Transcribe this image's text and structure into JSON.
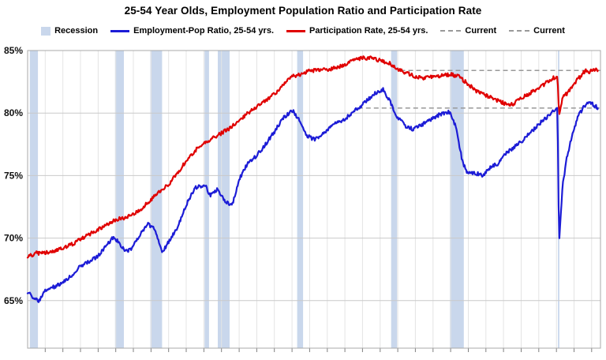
{
  "title": "25-54 Year Olds, Employment Population Ratio and Participation Rate",
  "legend": [
    {
      "name": "recession",
      "label": "Recession",
      "type": "box",
      "color": "#c9d7ec"
    },
    {
      "name": "employment-pop-ratio",
      "label": "Employment-Pop Ratio, 25-54 yrs.",
      "type": "line",
      "color": "#1c1cd6"
    },
    {
      "name": "participation-rate",
      "label": "Participation Rate, 25-54 yrs.",
      "type": "line",
      "color": "#e00000"
    },
    {
      "name": "current-1",
      "label": "Current",
      "type": "dash",
      "color": "#999999"
    },
    {
      "name": "current-2",
      "label": "Current",
      "type": "dash",
      "color": "#999999"
    }
  ],
  "chart_data": {
    "type": "line",
    "title": "25-54 Year Olds, Employment Population Ratio and Participation Rate",
    "xlabel": "",
    "ylabel": "",
    "x_range": [
      1960,
      2025
    ],
    "y_range": [
      61.2,
      85
    ],
    "x_grid_step": 2,
    "grid": {
      "horizontal": true,
      "vertical": true
    },
    "legend_position": "top",
    "y_ticks": [
      {
        "value": 85,
        "label": "85%"
      },
      {
        "value": 80,
        "label": "80%"
      },
      {
        "value": 75,
        "label": "75%"
      },
      {
        "value": 70,
        "label": "70%"
      },
      {
        "value": 65,
        "label": "65%"
      }
    ],
    "colors": {
      "recession_band": "#c9d7ec",
      "grid_vertical": "#e4e4e4",
      "grid_horizontal": "#c9c9c9",
      "plot_border": "#a8a8a8",
      "current_dash": "#999999"
    },
    "recession_bands": [
      [
        1960.25,
        1961.17
      ],
      [
        1969.92,
        1970.92
      ],
      [
        1973.92,
        1975.25
      ],
      [
        1980.08,
        1980.58
      ],
      [
        1981.58,
        1982.92
      ],
      [
        1990.58,
        1991.25
      ],
      [
        2001.25,
        2001.92
      ],
      [
        2007.92,
        2009.5
      ],
      [
        2020.17,
        2020.33
      ]
    ],
    "current_lines": [
      {
        "label": "Current",
        "series": "Participation Rate, 25-54 yrs.",
        "value": 83.4,
        "x_start": 2002.3
      },
      {
        "label": "Current",
        "series": "Employment-Pop Ratio, 25-54 yrs.",
        "value": 80.4,
        "x_start": 1997.5
      }
    ],
    "series": [
      {
        "name": "Employment-Pop Ratio, 25-54 yrs.",
        "color": "#1c1cd6",
        "points": [
          [
            1960.0,
            65.7
          ],
          [
            1960.6,
            65.3
          ],
          [
            1961.3,
            65.0
          ],
          [
            1962.0,
            65.8
          ],
          [
            1963.0,
            66.1
          ],
          [
            1964.0,
            66.5
          ],
          [
            1965.0,
            67.0
          ],
          [
            1966.0,
            67.8
          ],
          [
            1967.0,
            68.1
          ],
          [
            1968.0,
            68.6
          ],
          [
            1969.0,
            69.5
          ],
          [
            1969.8,
            70.1
          ],
          [
            1970.4,
            69.6
          ],
          [
            1971.1,
            68.9
          ],
          [
            1971.8,
            69.2
          ],
          [
            1972.5,
            70.0
          ],
          [
            1973.6,
            71.2
          ],
          [
            1974.4,
            70.7
          ],
          [
            1975.3,
            68.9
          ],
          [
            1976.0,
            69.7
          ],
          [
            1977.0,
            70.8
          ],
          [
            1978.0,
            72.7
          ],
          [
            1979.0,
            74.0
          ],
          [
            1980.1,
            74.3
          ],
          [
            1980.7,
            73.4
          ],
          [
            1981.5,
            73.9
          ],
          [
            1982.3,
            73.0
          ],
          [
            1983.2,
            72.6
          ],
          [
            1984.0,
            74.7
          ],
          [
            1985.0,
            76.0
          ],
          [
            1986.0,
            76.6
          ],
          [
            1987.0,
            77.5
          ],
          [
            1988.0,
            78.5
          ],
          [
            1989.0,
            79.6
          ],
          [
            1990.1,
            80.2
          ],
          [
            1990.9,
            79.3
          ],
          [
            1991.6,
            78.2
          ],
          [
            1992.5,
            77.9
          ],
          [
            1993.5,
            78.3
          ],
          [
            1994.5,
            79.0
          ],
          [
            1995.5,
            79.3
          ],
          [
            1996.5,
            79.8
          ],
          [
            1997.5,
            80.4
          ],
          [
            1998.5,
            81.0
          ],
          [
            1999.5,
            81.6
          ],
          [
            2000.3,
            81.9
          ],
          [
            2001.0,
            81.1
          ],
          [
            2002.0,
            79.6
          ],
          [
            2003.0,
            78.9
          ],
          [
            2003.8,
            78.7
          ],
          [
            2004.8,
            79.1
          ],
          [
            2005.8,
            79.5
          ],
          [
            2006.8,
            79.9
          ],
          [
            2007.9,
            80.1
          ],
          [
            2008.6,
            78.9
          ],
          [
            2009.3,
            76.2
          ],
          [
            2009.9,
            75.2
          ],
          [
            2010.8,
            75.2
          ],
          [
            2011.7,
            75.0
          ],
          [
            2012.5,
            75.7
          ],
          [
            2013.3,
            75.9
          ],
          [
            2014.3,
            76.8
          ],
          [
            2015.3,
            77.3
          ],
          [
            2016.3,
            77.9
          ],
          [
            2017.3,
            78.6
          ],
          [
            2018.3,
            79.3
          ],
          [
            2019.3,
            79.9
          ],
          [
            2020.12,
            80.5
          ],
          [
            2020.3,
            69.6
          ],
          [
            2020.7,
            74.2
          ],
          [
            2021.2,
            76.5
          ],
          [
            2021.8,
            78.2
          ],
          [
            2022.5,
            79.8
          ],
          [
            2023.2,
            80.6
          ],
          [
            2023.8,
            80.9
          ],
          [
            2024.3,
            80.6
          ],
          [
            2024.7,
            80.4
          ]
        ]
      },
      {
        "name": "Participation Rate, 25-54 yrs.",
        "color": "#e00000",
        "points": [
          [
            1960.0,
            68.5
          ],
          [
            1961.0,
            68.8
          ],
          [
            1962.0,
            68.8
          ],
          [
            1963.0,
            69.0
          ],
          [
            1964.0,
            69.2
          ],
          [
            1965.0,
            69.5
          ],
          [
            1966.0,
            69.9
          ],
          [
            1967.0,
            70.3
          ],
          [
            1968.0,
            70.7
          ],
          [
            1969.0,
            71.1
          ],
          [
            1970.0,
            71.5
          ],
          [
            1971.0,
            71.6
          ],
          [
            1972.0,
            71.9
          ],
          [
            1973.0,
            72.4
          ],
          [
            1974.0,
            73.1
          ],
          [
            1975.0,
            73.7
          ],
          [
            1976.0,
            74.3
          ],
          [
            1977.0,
            75.2
          ],
          [
            1978.0,
            76.2
          ],
          [
            1979.0,
            77.0
          ],
          [
            1980.0,
            77.6
          ],
          [
            1981.0,
            78.0
          ],
          [
            1982.0,
            78.4
          ],
          [
            1983.0,
            78.8
          ],
          [
            1984.0,
            79.4
          ],
          [
            1985.0,
            80.0
          ],
          [
            1986.0,
            80.5
          ],
          [
            1987.0,
            81.0
          ],
          [
            1988.0,
            81.5
          ],
          [
            1989.0,
            82.3
          ],
          [
            1990.0,
            82.9
          ],
          [
            1991.0,
            83.1
          ],
          [
            1992.0,
            83.4
          ],
          [
            1993.0,
            83.4
          ],
          [
            1994.0,
            83.5
          ],
          [
            1995.0,
            83.6
          ],
          [
            1996.0,
            83.9
          ],
          [
            1997.0,
            84.2
          ],
          [
            1998.0,
            84.4
          ],
          [
            1999.0,
            84.4
          ],
          [
            2000.0,
            84.2
          ],
          [
            2001.0,
            84.0
          ],
          [
            2002.0,
            83.5
          ],
          [
            2003.0,
            83.2
          ],
          [
            2004.0,
            82.9
          ],
          [
            2005.0,
            82.8
          ],
          [
            2006.0,
            82.9
          ],
          [
            2007.0,
            83.0
          ],
          [
            2008.0,
            83.1
          ],
          [
            2009.0,
            82.9
          ],
          [
            2010.0,
            82.3
          ],
          [
            2011.0,
            81.7
          ],
          [
            2012.0,
            81.4
          ],
          [
            2013.0,
            81.1
          ],
          [
            2014.0,
            80.8
          ],
          [
            2015.0,
            80.7
          ],
          [
            2016.0,
            81.2
          ],
          [
            2017.0,
            81.6
          ],
          [
            2018.0,
            82.0
          ],
          [
            2019.0,
            82.5
          ],
          [
            2020.12,
            83.0
          ],
          [
            2020.3,
            79.9
          ],
          [
            2020.7,
            81.3
          ],
          [
            2021.3,
            81.6
          ],
          [
            2022.0,
            82.4
          ],
          [
            2022.7,
            82.9
          ],
          [
            2023.3,
            83.4
          ],
          [
            2023.8,
            83.3
          ],
          [
            2024.3,
            83.5
          ],
          [
            2024.7,
            83.4
          ]
        ]
      }
    ]
  }
}
